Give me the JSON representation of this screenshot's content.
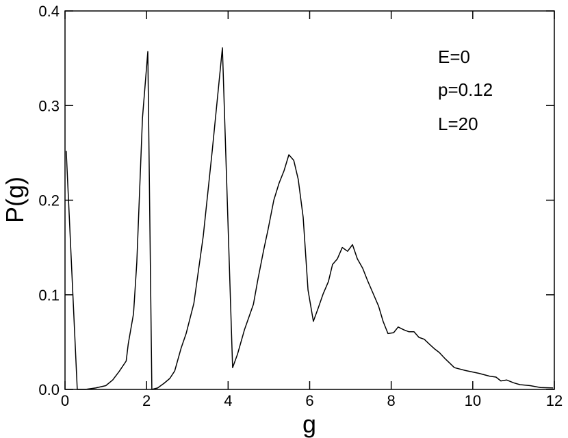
{
  "chart_data": {
    "type": "line",
    "x_label": "g",
    "y_label": "P(g)",
    "annotations": [
      "E=0",
      "p=0.12",
      "L=20"
    ],
    "color": "#000000",
    "xlim": [
      0,
      12
    ],
    "ylim": [
      0,
      0.4
    ],
    "xticks": [
      0,
      2,
      4,
      6,
      8,
      10,
      12
    ],
    "yticks": [
      {
        "value": 0,
        "label": "0.0"
      },
      0.1,
      0.2,
      0.3,
      0.4
    ],
    "x": [
      0.03,
      0.3,
      0.5,
      0.75,
      1.0,
      1.17,
      1.33,
      1.5,
      1.55,
      1.68,
      1.76,
      1.9,
      2.03,
      2.13,
      2.27,
      2.43,
      2.57,
      2.69,
      2.85,
      2.97,
      3.16,
      3.39,
      3.61,
      3.86,
      4.11,
      4.23,
      4.4,
      4.62,
      4.73,
      4.87,
      4.98,
      5.12,
      5.25,
      5.37,
      5.49,
      5.61,
      5.72,
      5.84,
      5.96,
      6.09,
      6.21,
      6.33,
      6.46,
      6.56,
      6.68,
      6.8,
      6.93,
      7.05,
      7.17,
      7.3,
      7.42,
      7.55,
      7.69,
      7.8,
      7.92,
      8.06,
      8.17,
      8.31,
      8.43,
      8.56,
      8.68,
      8.81,
      8.93,
      9.06,
      9.18,
      9.31,
      9.43,
      9.55,
      9.82,
      10.15,
      10.41,
      10.57,
      10.69,
      10.83,
      11.0,
      11.16,
      11.41,
      11.66,
      11.97
    ],
    "values": [
      0.252,
      0,
      0,
      0.0015,
      0.004,
      0.01,
      0.019,
      0.03,
      0.048,
      0.08,
      0.134,
      0.287,
      0.357,
      0,
      0.0015,
      0.0065,
      0.0116,
      0.0195,
      0.044,
      0.059,
      0.091,
      0.162,
      0.252,
      0.361,
      0.023,
      0.037,
      0.063,
      0.09,
      0.116,
      0.147,
      0.169,
      0.2,
      0.218,
      0.231,
      0.248,
      0.242,
      0.222,
      0.182,
      0.105,
      0.072,
      0.086,
      0.101,
      0.114,
      0.132,
      0.138,
      0.15,
      0.146,
      0.153,
      0.138,
      0.128,
      0.115,
      0.102,
      0.088,
      0.072,
      0.059,
      0.06,
      0.066,
      0.063,
      0.061,
      0.061,
      0.055,
      0.053,
      0.048,
      0.043,
      0.039,
      0.033,
      0.028,
      0.023,
      0.02,
      0.017,
      0.014,
      0.013,
      0.009,
      0.01,
      0.007,
      0.005,
      0.004,
      0.002,
      0.0015
    ]
  }
}
